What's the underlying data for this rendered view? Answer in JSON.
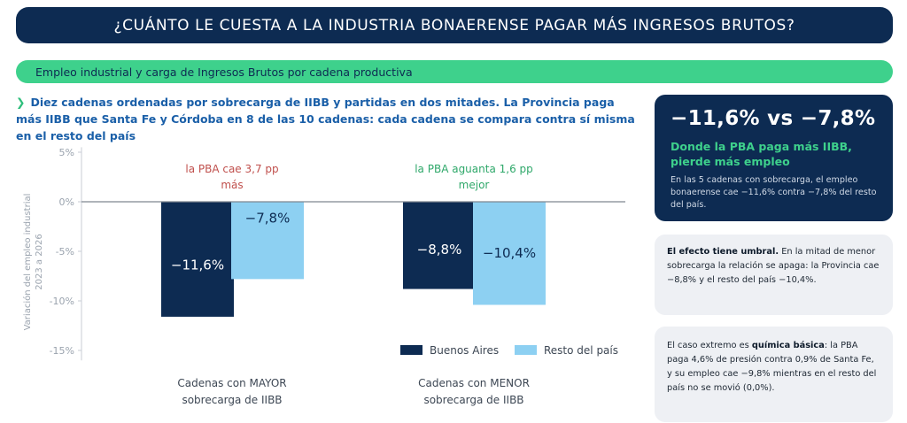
{
  "header": {
    "title": "¿CUÁNTO LE CUESTA A LA INDUSTRIA BONAERENSE PAGAR MÁS INGRESOS BRUTOS?"
  },
  "section": {
    "title": "Empleo industrial y carga de Ingresos Brutos por cadena productiva"
  },
  "intro": {
    "chevron": "❯",
    "text": "Diez cadenas ordenadas por sobrecarga de IIBB y partidas en dos mitades. La Provincia paga más IIBB que Santa Fe y Córdoba en 8 de las 10 cadenas: cada cadena se compara contra sí misma en el resto del país"
  },
  "chart_data": {
    "type": "bar",
    "ylabel_lines": [
      "Variación del empleo industrial",
      "2023 a 2026"
    ],
    "ylim": [
      -16,
      5.5
    ],
    "yticks": [
      5,
      0,
      -5,
      -10,
      -15
    ],
    "ytick_labels": [
      "5%",
      "0%",
      "-5%",
      "-10%",
      "-15%"
    ],
    "categories": [
      {
        "lines": [
          "Cadenas con MAYOR",
          "sobrecarga de IIBB"
        ]
      },
      {
        "lines": [
          "Cadenas con MENOR",
          "sobrecarga de IIBB"
        ]
      }
    ],
    "series": [
      {
        "name": "Buenos Aires",
        "color": "#0d2b52",
        "label_color": "#ffffff",
        "values": [
          -11.6,
          -8.8
        ],
        "labels": [
          "−11,6%",
          "−8,8%"
        ]
      },
      {
        "name": "Resto del país",
        "color": "#8dd0f2",
        "label_color": "#0d2b52",
        "values": [
          -7.8,
          -10.4
        ],
        "labels": [
          "−7,8%",
          "−10,4%"
        ]
      }
    ],
    "annotations": [
      {
        "lines": [
          "la PBA cae 3,7 pp",
          "más"
        ],
        "color": "#c0504d"
      },
      {
        "lines": [
          "la PBA aguanta 1,6 pp",
          "mejor"
        ],
        "color": "#2fa86a"
      }
    ],
    "legend_position": "bottom-right",
    "grid": false
  },
  "cards": {
    "highlight": {
      "big": "−11,6% vs −7,8%",
      "green": "Donde la PBA paga más IIBB, pierde más empleo",
      "small": "En las 5 cadenas con sobrecarga, el empleo bonaerense cae −11,6% contra −7,8% del resto del país."
    },
    "threshold": {
      "bold": "El efecto tiene umbral.",
      "rest": " En la mitad de menor sobrecarga la relación se apaga: la Provincia cae −8,8% y el resto del país −10,4%."
    },
    "extreme": {
      "pre": "El caso extremo es ",
      "bold": "química básica",
      "post": ": la PBA paga 4,6% de presión contra 0,9% de Santa Fe, y su empleo cae −9,8% mientras en el resto del país no se movió (0,0%)."
    }
  }
}
